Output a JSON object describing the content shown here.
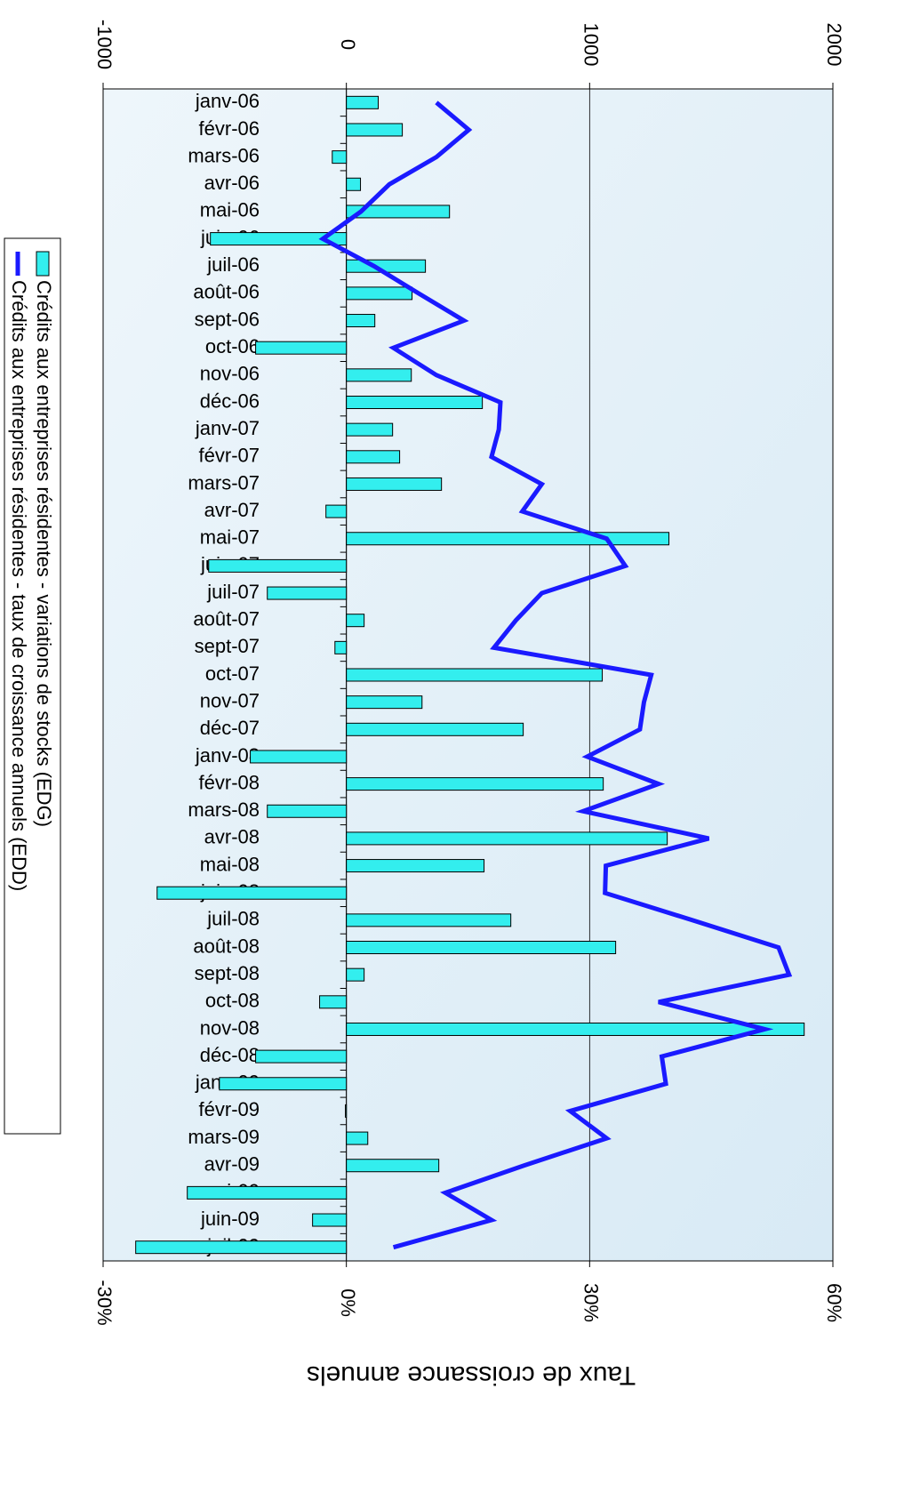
{
  "chart_data": {
    "type": "bar-line",
    "x2_axis_label": "Taux de croissance annuels",
    "categories": [
      "janv-06",
      "févr-06",
      "mars-06",
      "avr-06",
      "mai-06",
      "juin-06",
      "juil-06",
      "août-06",
      "sept-06",
      "oct-06",
      "nov-06",
      "déc-06",
      "janv-07",
      "févr-07",
      "mars-07",
      "avr-07",
      "mai-07",
      "juin-07",
      "juil-07",
      "août-07",
      "sept-07",
      "oct-07",
      "nov-07",
      "déc-07",
      "janv-08",
      "févr-08",
      "mars-08",
      "avr-08",
      "mai-08",
      "juin-08",
      "juil-08",
      "août-08",
      "sept-08",
      "oct-08",
      "nov-08",
      "déc-08",
      "janv-09",
      "févr-09",
      "mars-09",
      "avr-09",
      "mai-09",
      "juin-09",
      "juil-09"
    ],
    "series": [
      {
        "name": "Crédits aux entreprises résidentes - variations de stocks (EDG)",
        "type": "bar",
        "color": "#33eeee",
        "values": [
          131,
          230,
          -58,
          58,
          424,
          -559,
          325,
          270,
          117,
          -373,
          267,
          559,
          190,
          219,
          391,
          -84,
          1326,
          -566,
          -325,
          73,
          -47,
          1052,
          311,
          727,
          -395,
          1056,
          -325,
          1319,
          566,
          -778,
          676,
          1107,
          73,
          -110,
          1882,
          -373,
          -522,
          -4,
          88,
          380,
          -654,
          -139,
          -866
        ]
      },
      {
        "name": "Crédits aux entreprises résidentes - taux de croissance annuels (EDD)",
        "type": "line",
        "axis": "x2",
        "color": "#1a1aff",
        "values": [
          11.1,
          15.1,
          11.1,
          5.3,
          1.8,
          -2.9,
          3.4,
          8.9,
          14.5,
          5.8,
          11.1,
          19.0,
          18.8,
          17.9,
          24.1,
          21.7,
          32.1,
          34.4,
          24.1,
          20.9,
          18.2,
          37.6,
          36.7,
          36.2,
          29.7,
          38.5,
          29.2,
          44.7,
          32.0,
          31.9,
          42.7,
          53.3,
          54.6,
          38.5,
          51.6,
          38.9,
          39.4,
          27.6,
          32.1,
          21.9,
          12.2,
          17.9,
          5.8
        ]
      }
    ],
    "xlim": [
      -1000,
      2000
    ],
    "xticks": [
      -1000,
      0,
      1000,
      2000
    ],
    "x2lim": [
      -30,
      60
    ],
    "x2ticks": [
      {
        "value": -30,
        "label": "-30%"
      },
      {
        "value": 0,
        "label": "0%"
      },
      {
        "value": 30,
        "label": "30%"
      },
      {
        "value": 60,
        "label": "60%"
      }
    ],
    "grid": true
  }
}
